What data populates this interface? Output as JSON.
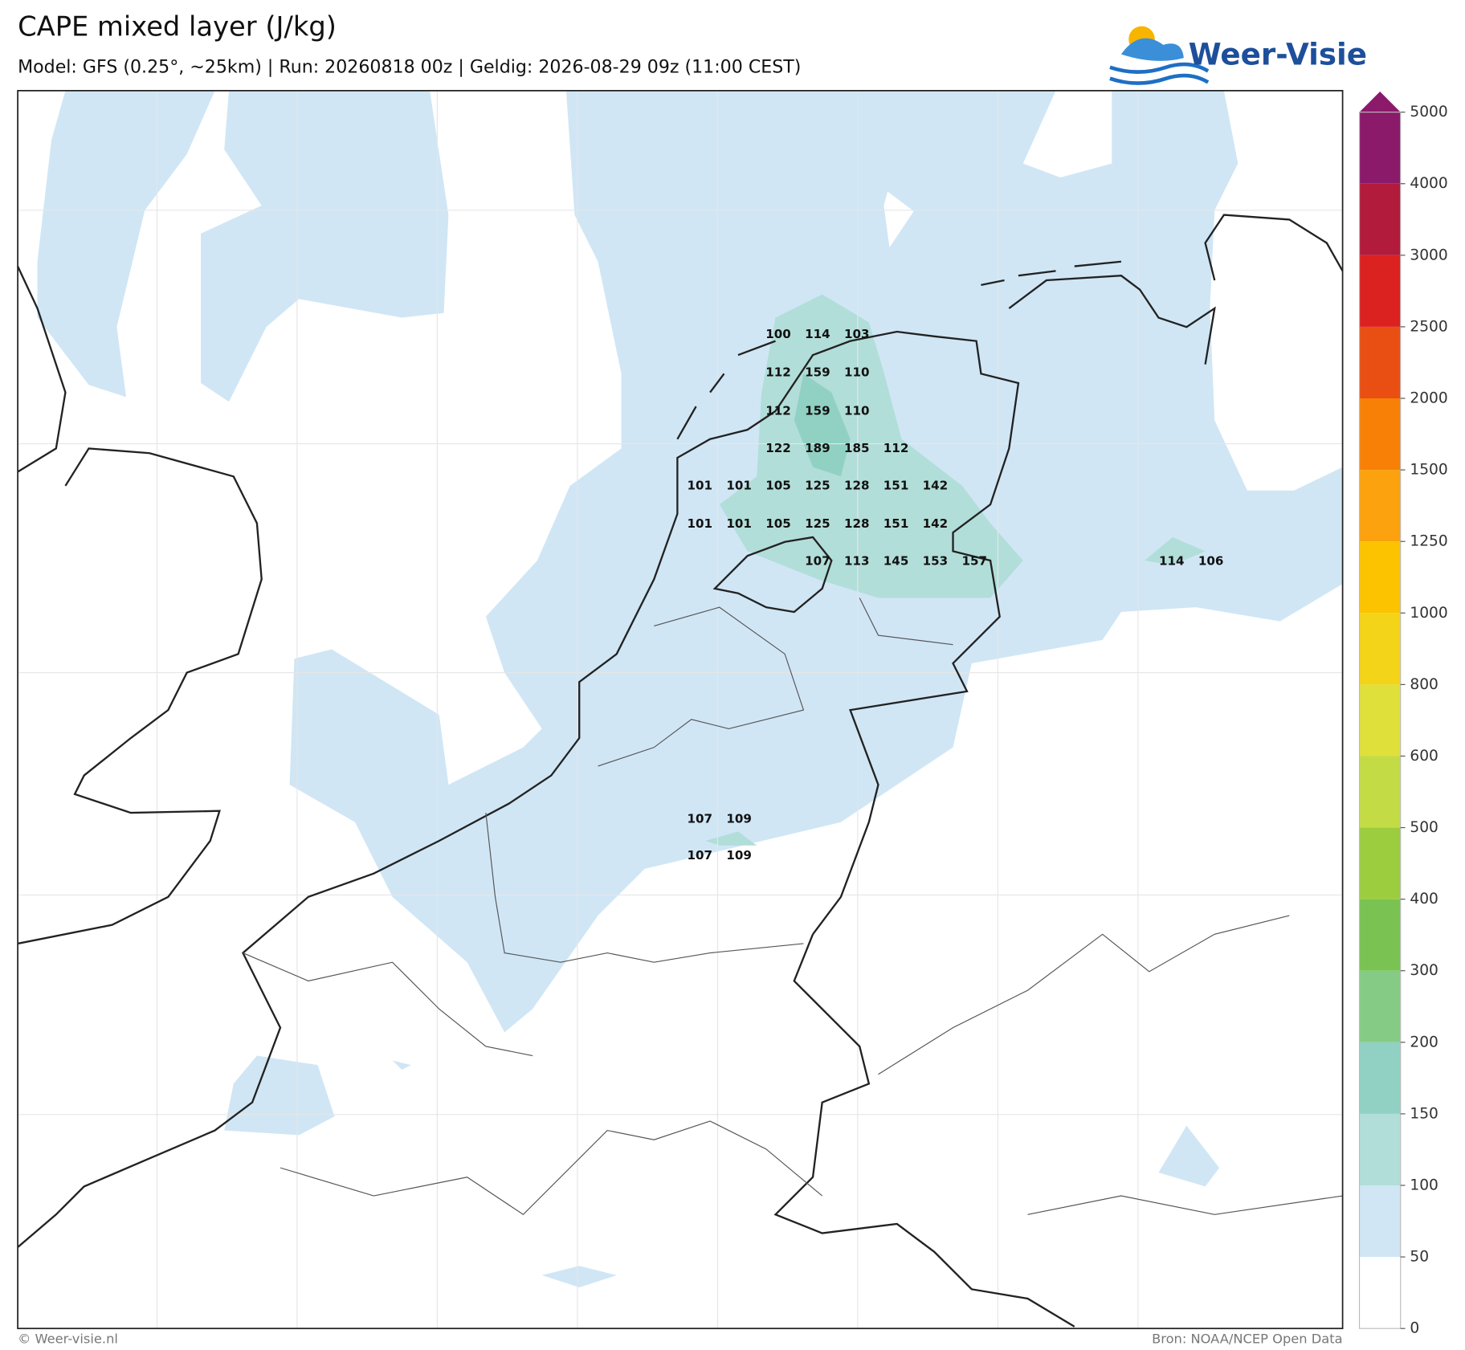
{
  "header": {
    "title": "CAPE mixed layer (J/kg)",
    "subtitle": "Model: GFS (0.25°, ~25km)  |  Run: 20260818 00z  |  Geldig: 2026-08-29 09z (11:00 CEST)",
    "logo": "Weer-Visie"
  },
  "colorbar": {
    "ticks": [
      0,
      50,
      100,
      150,
      200,
      300,
      400,
      500,
      600,
      800,
      1000,
      1250,
      1500,
      2000,
      2500,
      3000,
      4000,
      5000
    ],
    "colors": [
      "#ffffff",
      "#d0e6f5",
      "#b2ded9",
      "#91d1c3",
      "#86cb85",
      "#7ac352",
      "#9bcd3f",
      "#c3dc46",
      "#dfe03a",
      "#f4d418",
      "#fbc300",
      "#fba20e",
      "#f88006",
      "#e94f13",
      "#dc2121",
      "#b21b3b",
      "#8b1a6b"
    ]
  },
  "map_labels": [
    100,
    114,
    103,
    112,
    159,
    110,
    112,
    159,
    110,
    122,
    189,
    185,
    112,
    101,
    101,
    105,
    125,
    128,
    151,
    142,
    101,
    101,
    105,
    125,
    128,
    151,
    142,
    107,
    113,
    145,
    153,
    157,
    114,
    106,
    107,
    109,
    107,
    109
  ],
  "footer": {
    "left": "© Weer-visie.nl",
    "right": "Bron: NOAA/NCEP Open Data"
  }
}
